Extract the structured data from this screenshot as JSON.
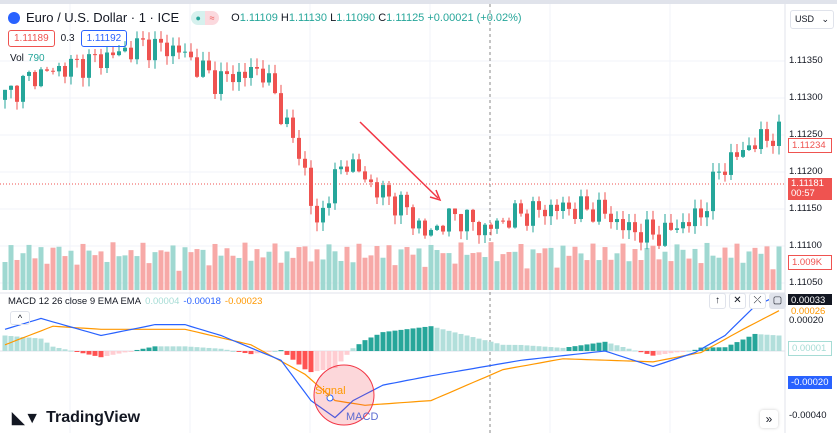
{
  "header": {
    "symbol": "Euro / U.S. Dollar · 1 · ICE",
    "open_label": "O",
    "open": "1.11109",
    "high_label": "H",
    "high": "1.11130",
    "low_label": "L",
    "low": "1.11090",
    "close_label": "C",
    "close": "1.11125",
    "change": "+0.00021 (+0.02%)"
  },
  "bidask": {
    "sell": "1.11189",
    "spread": "0.3",
    "buy": "1.11192"
  },
  "volume": {
    "label": "Vol",
    "value": "790"
  },
  "currency": "USD",
  "price_axis": [
    "1.11350",
    "1.11300",
    "1.11250",
    "1.11200",
    "1.11150",
    "1.11100",
    "1.11050"
  ],
  "price_tags": {
    "last": "1.11234",
    "current": "1.11181",
    "countdown": "00:57",
    "volume": "1.009K"
  },
  "macd": {
    "label": "MACD 12 26 close 9 EMA EMA",
    "hist": "0.00004",
    "macd": "-0.00018",
    "signal": "-0.00023",
    "axis": [
      "0.00020",
      "-0.00040"
    ],
    "tags": {
      "top": "0.00033",
      "signal": "0.00026",
      "hist": "0.00001",
      "macd": "-0.00020"
    }
  },
  "annotations": {
    "signal": "Signal",
    "macd": "MACD"
  },
  "brand": "TradingView",
  "colors": {
    "up": "#26a69a",
    "down": "#ef5350",
    "macd": "#2962ff",
    "signal": "#ff9800"
  },
  "chart_data": {
    "type": "candlestick",
    "price_path": [
      [
        0,
        1.11297
      ],
      [
        6,
        1.11331
      ],
      [
        16,
        1.11351
      ],
      [
        24,
        1.11372
      ],
      [
        30,
        1.11365
      ],
      [
        36,
        1.11324
      ],
      [
        44,
        1.11338
      ],
      [
        48,
        1.11263
      ],
      [
        51,
        1.11201
      ],
      [
        53,
        1.1112
      ],
      [
        55,
        1.11174
      ],
      [
        58,
        1.11215
      ],
      [
        63,
        1.11174
      ],
      [
        68,
        1.11147
      ],
      [
        71,
        1.11113
      ],
      [
        76,
        1.1114
      ],
      [
        81,
        1.1112
      ],
      [
        86,
        1.1114
      ],
      [
        93,
        1.1115
      ],
      [
        100,
        1.11147
      ],
      [
        105,
        1.1112
      ],
      [
        110,
        1.11113
      ],
      [
        117,
        1.1114
      ],
      [
        120,
        1.11201
      ],
      [
        125,
        1.11235
      ],
      [
        129,
        1.11249
      ]
    ],
    "macd_path": [
      [
        0,
        0.00014
      ],
      [
        6,
        0.00021
      ],
      [
        16,
        0.0001
      ],
      [
        25,
        0.00017
      ],
      [
        30,
        0.00017
      ],
      [
        36,
        0.0001
      ],
      [
        46,
        -6e-05
      ],
      [
        51,
        -0.00032
      ],
      [
        55,
        -0.00043
      ],
      [
        58,
        -0.00032
      ],
      [
        63,
        -0.00022
      ],
      [
        71,
        -0.00016
      ],
      [
        80,
        -0.0001
      ],
      [
        86,
        -6e-05
      ],
      [
        93,
        -3e-05
      ],
      [
        100,
        0.0
      ],
      [
        108,
        -0.0001
      ],
      [
        115,
        -1e-05
      ],
      [
        120,
        0.0001
      ],
      [
        125,
        0.00029
      ],
      [
        129,
        0.00036
      ]
    ],
    "signal_path": [
      [
        0,
        4e-05
      ],
      [
        8,
        0.00016
      ],
      [
        16,
        0.00014
      ],
      [
        30,
        0.00014
      ],
      [
        41,
        4e-05
      ],
      [
        50,
        -0.00015
      ],
      [
        55,
        -0.00032
      ],
      [
        60,
        -0.00035
      ],
      [
        71,
        -0.00032
      ],
      [
        83,
        -0.00012
      ],
      [
        93,
        -5e-05
      ],
      [
        108,
        -7e-05
      ],
      [
        116,
        -1e-05
      ],
      [
        123,
        0.00014
      ],
      [
        129,
        0.00026
      ]
    ]
  }
}
